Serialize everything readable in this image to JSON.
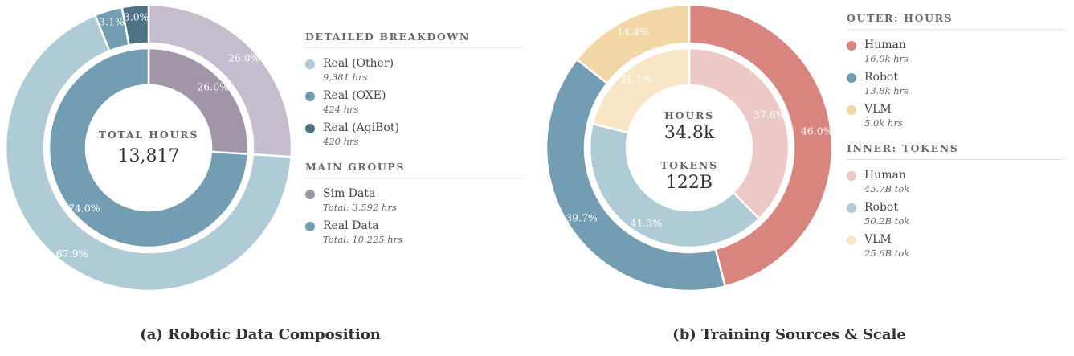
{
  "colors": {
    "real_other": "#aecbd6",
    "real_oxe": "#739db2",
    "real_agibot": "#4e7286",
    "sim": "#a196a7",
    "sim_outer": "#c5bccd",
    "human_outer": "#d9857f",
    "robot_outer": "#739db2",
    "vlm_outer": "#f2d7a7",
    "human_inner": "#ecc9c6",
    "robot_inner": "#aecbd6",
    "vlm_inner": "#f8e6c7"
  },
  "panel_a": {
    "caption": "(a) Robotic Data Composition",
    "center": {
      "label": "TOTAL HOURS",
      "value": "13,817"
    },
    "legend": {
      "detailed_title": "DETAILED BREAKDOWN",
      "detailed": [
        {
          "name": "Real (Other)",
          "sub": "9,381 hrs"
        },
        {
          "name": "Real (OXE)",
          "sub": "424 hrs"
        },
        {
          "name": "Real (AgiBot)",
          "sub": "420 hrs"
        }
      ],
      "groups_title": "MAIN GROUPS",
      "groups": [
        {
          "name": "Sim Data",
          "sub": "Total: 3,592 hrs"
        },
        {
          "name": "Real Data",
          "sub": "Total: 10,225 hrs"
        }
      ]
    }
  },
  "panel_b": {
    "caption": "(b) Training Sources & Scale",
    "center": {
      "label1": "HOURS",
      "value1": "34.8k",
      "label2": "TOKENS",
      "value2": "122B"
    },
    "legend": {
      "outer_title": "OUTER: HOURS",
      "outer": [
        {
          "name": "Human",
          "sub": "16.0k hrs"
        },
        {
          "name": "Robot",
          "sub": "13.8k hrs"
        },
        {
          "name": "VLM",
          "sub": "5.0k hrs"
        }
      ],
      "inner_title": "INNER: TOKENS",
      "inner": [
        {
          "name": "Human",
          "sub": "45.7B tok"
        },
        {
          "name": "Robot",
          "sub": "50.2B tok"
        },
        {
          "name": "VLM",
          "sub": "25.6B tok"
        }
      ]
    }
  },
  "chart_data": [
    {
      "type": "pie",
      "title": "",
      "rings": [
        {
          "ring": "inner",
          "slices": [
            {
              "label": "Sim Data",
              "value": 26.0,
              "display": "26.0%"
            },
            {
              "label": "Real Data",
              "value": 74.0,
              "display": "74.0%"
            }
          ]
        },
        {
          "ring": "outer",
          "slices": [
            {
              "label": "Sim Data",
              "value": 26.0,
              "display": "26.0%"
            },
            {
              "label": "Real (Other)",
              "value": 67.9,
              "display": "67.9%"
            },
            {
              "label": "Real (OXE)",
              "value": 3.1,
              "display": "3.1%"
            },
            {
              "label": "Real (AgiBot)",
              "value": 3.0,
              "display": "3.0%"
            }
          ]
        }
      ]
    },
    {
      "type": "pie",
      "title": "",
      "rings": [
        {
          "ring": "outer",
          "slices": [
            {
              "label": "Human",
              "value": 46.0,
              "display": "46.0%"
            },
            {
              "label": "Robot",
              "value": 39.7,
              "display": "39.7%"
            },
            {
              "label": "VLM",
              "value": 14.4,
              "display": "14.4%"
            }
          ]
        },
        {
          "ring": "inner",
          "slices": [
            {
              "label": "Human",
              "value": 37.6,
              "display": "37.6%"
            },
            {
              "label": "Robot",
              "value": 41.3,
              "display": "41.3%"
            },
            {
              "label": "VLM",
              "value": 21.1,
              "display": "21.1%"
            }
          ]
        }
      ]
    }
  ]
}
